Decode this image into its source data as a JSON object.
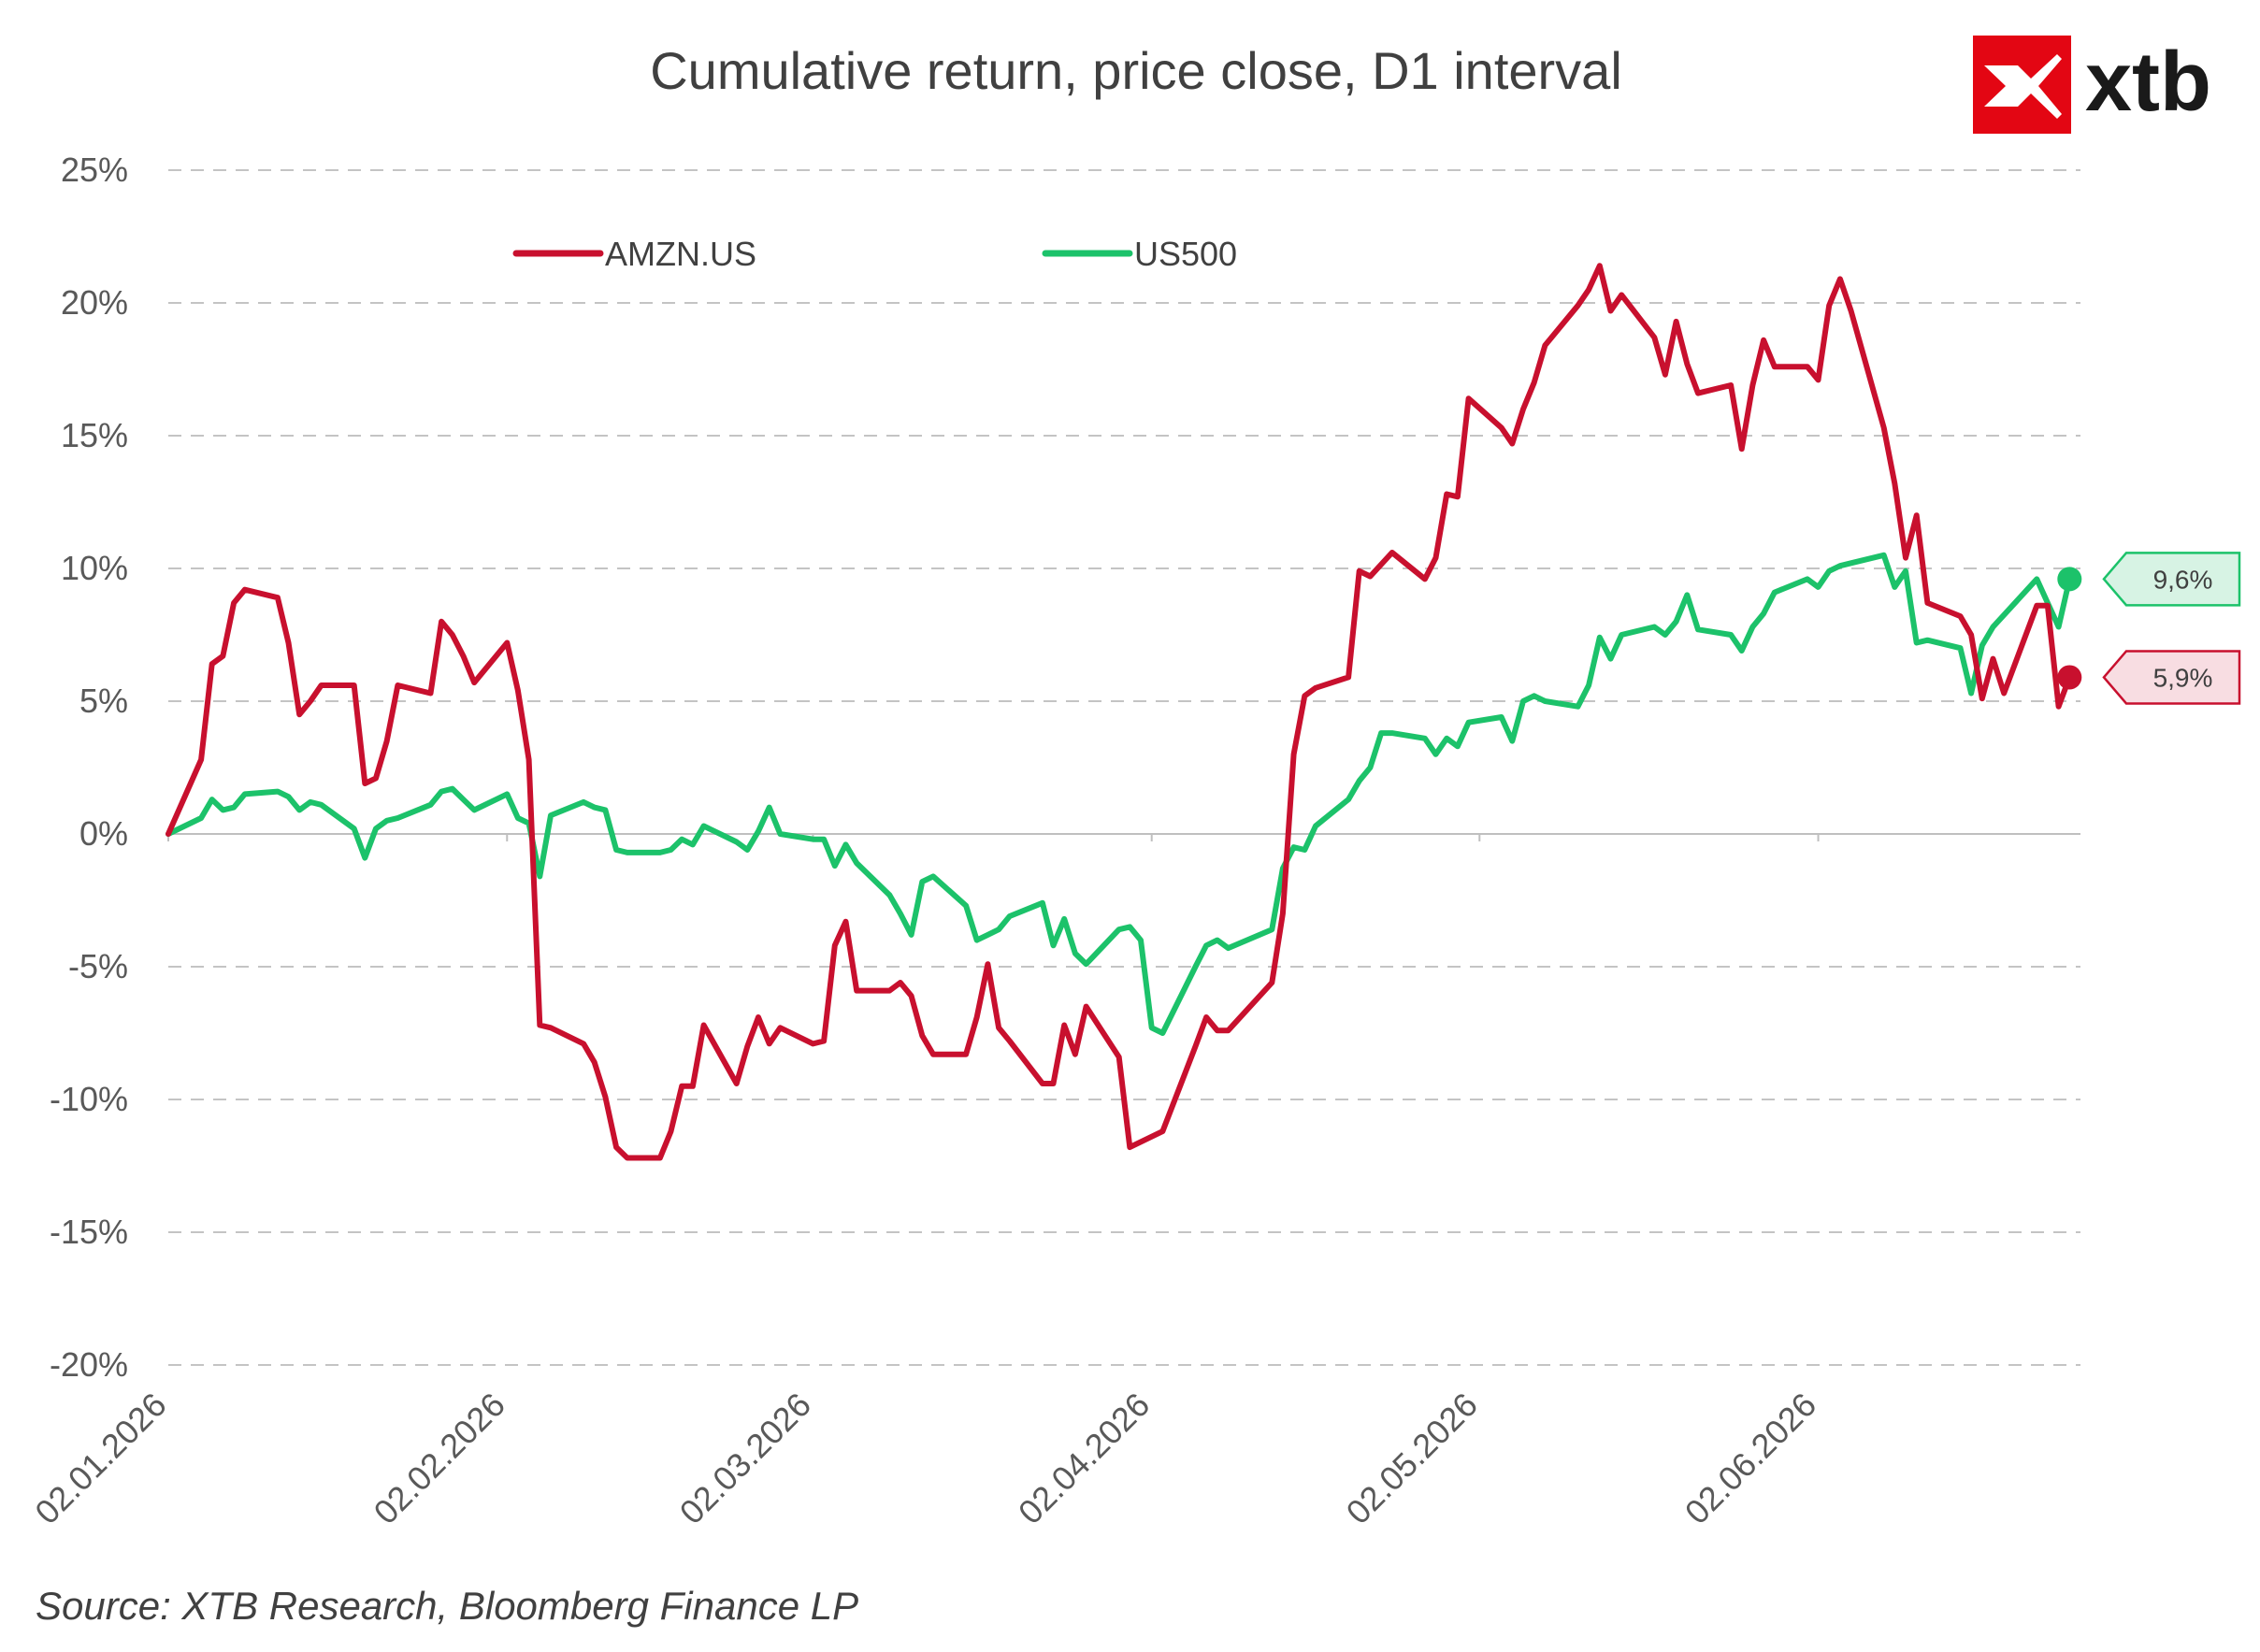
{
  "brand": {
    "logo_text": "xtb",
    "logo_color": "#e30613",
    "logo_icon": "x-mark-icon"
  },
  "source": "Source: XTB Research, Bloomberg Finance LP",
  "chart_data": {
    "type": "line",
    "title": "Cumulative return, price close, D1 interval",
    "xlabel": "",
    "ylabel": "",
    "ylim": [
      -20,
      25
    ],
    "yticks": [
      25,
      20,
      15,
      10,
      5,
      0,
      -5,
      -10,
      -15,
      -20
    ],
    "ytick_labels": [
      "25%",
      "20%",
      "15%",
      "10%",
      "5%",
      "0%",
      "-5%",
      "-10%",
      "-15%",
      "-20%"
    ],
    "xlim": [
      "2026-01-02",
      "2026-06-26"
    ],
    "xticks": [
      "2026-01-02",
      "2026-02-02",
      "2026-03-02",
      "2026-04-02",
      "2026-05-02",
      "2026-06-02"
    ],
    "xtick_labels": [
      "02.01.2026",
      "02.02.2026",
      "02.03.2026",
      "02.04.2026",
      "02.05.2026",
      "02.06.2026"
    ],
    "grid": true,
    "legend": "top-left",
    "series": [
      {
        "name": "AMZN.US",
        "color": "#c8102e",
        "end_label": "5,9%",
        "end_value": 5.9,
        "points": [
          [
            "2026-01-02",
            0
          ],
          [
            "2026-01-05",
            2.8
          ],
          [
            "2026-01-06",
            6.4
          ],
          [
            "2026-01-07",
            6.7
          ],
          [
            "2026-01-08",
            8.7
          ],
          [
            "2026-01-09",
            9.2
          ],
          [
            "2026-01-12",
            8.9
          ],
          [
            "2026-01-13",
            7.2
          ],
          [
            "2026-01-14",
            4.5
          ],
          [
            "2026-01-15",
            5.0
          ],
          [
            "2026-01-16",
            5.6
          ],
          [
            "2026-01-19",
            5.6
          ],
          [
            "2026-01-20",
            1.9
          ],
          [
            "2026-01-21",
            2.1
          ],
          [
            "2026-01-22",
            3.5
          ],
          [
            "2026-01-23",
            5.6
          ],
          [
            "2026-01-26",
            5.3
          ],
          [
            "2026-01-27",
            8.0
          ],
          [
            "2026-01-28",
            7.5
          ],
          [
            "2026-01-29",
            6.7
          ],
          [
            "2026-01-30",
            5.7
          ],
          [
            "2026-02-02",
            7.2
          ],
          [
            "2026-02-03",
            5.4
          ],
          [
            "2026-02-04",
            2.8
          ],
          [
            "2026-02-05",
            -7.2
          ],
          [
            "2026-02-06",
            -7.3
          ],
          [
            "2026-02-09",
            -7.9
          ],
          [
            "2026-02-10",
            -8.6
          ],
          [
            "2026-02-11",
            -9.9
          ],
          [
            "2026-02-12",
            -11.8
          ],
          [
            "2026-02-13",
            -12.2
          ],
          [
            "2026-02-16",
            -12.2
          ],
          [
            "2026-02-17",
            -11.2
          ],
          [
            "2026-02-18",
            -9.5
          ],
          [
            "2026-02-19",
            -9.5
          ],
          [
            "2026-02-20",
            -7.2
          ],
          [
            "2026-02-23",
            -9.4
          ],
          [
            "2026-02-24",
            -8.0
          ],
          [
            "2026-02-25",
            -6.9
          ],
          [
            "2026-02-26",
            -7.9
          ],
          [
            "2026-02-27",
            -7.3
          ],
          [
            "2026-03-02",
            -7.9
          ],
          [
            "2026-03-03",
            -7.8
          ],
          [
            "2026-03-04",
            -4.2
          ],
          [
            "2026-03-05",
            -3.3
          ],
          [
            "2026-03-06",
            -5.9
          ],
          [
            "2026-03-09",
            -5.9
          ],
          [
            "2026-03-10",
            -5.6
          ],
          [
            "2026-03-11",
            -6.1
          ],
          [
            "2026-03-12",
            -7.6
          ],
          [
            "2026-03-13",
            -8.3
          ],
          [
            "2026-03-16",
            -8.3
          ],
          [
            "2026-03-17",
            -6.9
          ],
          [
            "2026-03-18",
            -4.9
          ],
          [
            "2026-03-19",
            -7.3
          ],
          [
            "2026-03-20",
            -7.8
          ],
          [
            "2026-03-23",
            -9.4
          ],
          [
            "2026-03-24",
            -9.4
          ],
          [
            "2026-03-25",
            -7.2
          ],
          [
            "2026-03-26",
            -8.3
          ],
          [
            "2026-03-27",
            -6.5
          ],
          [
            "2026-03-30",
            -8.4
          ],
          [
            "2026-03-31",
            -11.8
          ],
          [
            "2026-04-03",
            -11.2
          ],
          [
            "2026-04-06",
            -8.0
          ],
          [
            "2026-04-07",
            -6.9
          ],
          [
            "2026-04-08",
            -7.4
          ],
          [
            "2026-04-09",
            -7.4
          ],
          [
            "2026-04-13",
            -5.6
          ],
          [
            "2026-04-14",
            -3.0
          ],
          [
            "2026-04-15",
            3.0
          ],
          [
            "2026-04-16",
            5.2
          ],
          [
            "2026-04-17",
            5.5
          ],
          [
            "2026-04-20",
            5.9
          ],
          [
            "2026-04-21",
            9.9
          ],
          [
            "2026-04-22",
            9.7
          ],
          [
            "2026-04-24",
            10.6
          ],
          [
            "2026-04-27",
            9.6
          ],
          [
            "2026-04-28",
            10.4
          ],
          [
            "2026-04-29",
            12.8
          ],
          [
            "2026-04-30",
            12.7
          ],
          [
            "2026-05-01",
            16.4
          ],
          [
            "2026-05-04",
            15.3
          ],
          [
            "2026-05-05",
            14.7
          ],
          [
            "2026-05-06",
            16.0
          ],
          [
            "2026-05-07",
            17.0
          ],
          [
            "2026-05-08",
            18.4
          ],
          [
            "2026-05-11",
            19.9
          ],
          [
            "2026-05-12",
            20.5
          ],
          [
            "2026-05-13",
            21.4
          ],
          [
            "2026-05-14",
            19.7
          ],
          [
            "2026-05-15",
            20.3
          ],
          [
            "2026-05-18",
            18.7
          ],
          [
            "2026-05-19",
            17.3
          ],
          [
            "2026-05-20",
            19.3
          ],
          [
            "2026-05-21",
            17.7
          ],
          [
            "2026-05-22",
            16.6
          ],
          [
            "2026-05-25",
            16.9
          ],
          [
            "2026-05-26",
            14.5
          ],
          [
            "2026-05-27",
            16.9
          ],
          [
            "2026-05-28",
            18.6
          ],
          [
            "2026-05-29",
            17.6
          ],
          [
            "2026-06-01",
            17.6
          ],
          [
            "2026-06-02",
            17.1
          ],
          [
            "2026-06-03",
            19.9
          ],
          [
            "2026-06-04",
            20.9
          ],
          [
            "2026-06-05",
            19.7
          ],
          [
            "2026-06-08",
            15.3
          ],
          [
            "2026-06-09",
            13.2
          ],
          [
            "2026-06-10",
            10.4
          ],
          [
            "2026-06-11",
            12.0
          ],
          [
            "2026-06-12",
            8.7
          ],
          [
            "2026-06-15",
            8.2
          ],
          [
            "2026-06-16",
            7.5
          ],
          [
            "2026-06-17",
            5.1
          ],
          [
            "2026-06-18",
            6.6
          ],
          [
            "2026-06-19",
            5.3
          ],
          [
            "2026-06-22",
            8.6
          ],
          [
            "2026-06-23",
            8.6
          ],
          [
            "2026-06-24",
            4.8
          ],
          [
            "2026-06-25",
            5.9
          ]
        ]
      },
      {
        "name": "US500",
        "color": "#1cc26a",
        "end_label": "9,6%",
        "end_value": 9.6,
        "points": [
          [
            "2026-01-02",
            0
          ],
          [
            "2026-01-05",
            0.6
          ],
          [
            "2026-01-06",
            1.3
          ],
          [
            "2026-01-07",
            0.9
          ],
          [
            "2026-01-08",
            1.0
          ],
          [
            "2026-01-09",
            1.5
          ],
          [
            "2026-01-12",
            1.6
          ],
          [
            "2026-01-13",
            1.4
          ],
          [
            "2026-01-14",
            0.9
          ],
          [
            "2026-01-15",
            1.2
          ],
          [
            "2026-01-16",
            1.1
          ],
          [
            "2026-01-19",
            0.2
          ],
          [
            "2026-01-20",
            -0.9
          ],
          [
            "2026-01-21",
            0.2
          ],
          [
            "2026-01-22",
            0.5
          ],
          [
            "2026-01-23",
            0.6
          ],
          [
            "2026-01-26",
            1.1
          ],
          [
            "2026-01-27",
            1.6
          ],
          [
            "2026-01-28",
            1.7
          ],
          [
            "2026-01-29",
            1.3
          ],
          [
            "2026-01-30",
            0.9
          ],
          [
            "2026-02-02",
            1.5
          ],
          [
            "2026-02-03",
            0.6
          ],
          [
            "2026-02-04",
            0.4
          ],
          [
            "2026-02-05",
            -1.6
          ],
          [
            "2026-02-06",
            0.7
          ],
          [
            "2026-02-09",
            1.2
          ],
          [
            "2026-02-10",
            1.0
          ],
          [
            "2026-02-11",
            0.9
          ],
          [
            "2026-02-12",
            -0.6
          ],
          [
            "2026-02-13",
            -0.7
          ],
          [
            "2026-02-16",
            -0.7
          ],
          [
            "2026-02-17",
            -0.6
          ],
          [
            "2026-02-18",
            -0.2
          ],
          [
            "2026-02-19",
            -0.4
          ],
          [
            "2026-02-20",
            0.3
          ],
          [
            "2026-02-23",
            -0.3
          ],
          [
            "2026-02-24",
            -0.6
          ],
          [
            "2026-02-25",
            0.1
          ],
          [
            "2026-02-26",
            1.0
          ],
          [
            "2026-02-27",
            0.0
          ],
          [
            "2026-03-02",
            -0.2
          ],
          [
            "2026-03-03",
            -0.2
          ],
          [
            "2026-03-04",
            -1.2
          ],
          [
            "2026-03-05",
            -0.4
          ],
          [
            "2026-03-06",
            -1.1
          ],
          [
            "2026-03-09",
            -2.3
          ],
          [
            "2026-03-10",
            -3.0
          ],
          [
            "2026-03-11",
            -3.8
          ],
          [
            "2026-03-12",
            -1.8
          ],
          [
            "2026-03-13",
            -1.6
          ],
          [
            "2026-03-16",
            -2.7
          ],
          [
            "2026-03-17",
            -4.0
          ],
          [
            "2026-03-18",
            -3.8
          ],
          [
            "2026-03-19",
            -3.6
          ],
          [
            "2026-03-20",
            -3.1
          ],
          [
            "2026-03-23",
            -2.6
          ],
          [
            "2026-03-24",
            -4.2
          ],
          [
            "2026-03-25",
            -3.2
          ],
          [
            "2026-03-26",
            -4.5
          ],
          [
            "2026-03-27",
            -4.9
          ],
          [
            "2026-03-30",
            -3.6
          ],
          [
            "2026-03-31",
            -3.5
          ],
          [
            "2026-04-01",
            -4.0
          ],
          [
            "2026-04-02",
            -7.3
          ],
          [
            "2026-04-03",
            -7.5
          ],
          [
            "2026-04-06",
            -5.0
          ],
          [
            "2026-04-07",
            -4.2
          ],
          [
            "2026-04-08",
            -4.0
          ],
          [
            "2026-04-09",
            -4.3
          ],
          [
            "2026-04-13",
            -3.6
          ],
          [
            "2026-04-14",
            -1.3
          ],
          [
            "2026-04-15",
            -0.5
          ],
          [
            "2026-04-16",
            -0.6
          ],
          [
            "2026-04-17",
            0.3
          ],
          [
            "2026-04-20",
            1.3
          ],
          [
            "2026-04-21",
            2.0
          ],
          [
            "2026-04-22",
            2.5
          ],
          [
            "2026-04-23",
            3.8
          ],
          [
            "2026-04-24",
            3.8
          ],
          [
            "2026-04-27",
            3.6
          ],
          [
            "2026-04-28",
            3.0
          ],
          [
            "2026-04-29",
            3.6
          ],
          [
            "2026-04-30",
            3.3
          ],
          [
            "2026-05-01",
            4.2
          ],
          [
            "2026-05-04",
            4.4
          ],
          [
            "2026-05-05",
            3.5
          ],
          [
            "2026-05-06",
            5.0
          ],
          [
            "2026-05-07",
            5.2
          ],
          [
            "2026-05-08",
            5.0
          ],
          [
            "2026-05-11",
            4.8
          ],
          [
            "2026-05-12",
            5.6
          ],
          [
            "2026-05-13",
            7.4
          ],
          [
            "2026-05-14",
            6.6
          ],
          [
            "2026-05-15",
            7.5
          ],
          [
            "2026-05-18",
            7.8
          ],
          [
            "2026-05-19",
            7.5
          ],
          [
            "2026-05-20",
            8.0
          ],
          [
            "2026-05-21",
            9.0
          ],
          [
            "2026-05-22",
            7.7
          ],
          [
            "2026-05-25",
            7.5
          ],
          [
            "2026-05-26",
            6.9
          ],
          [
            "2026-05-27",
            7.8
          ],
          [
            "2026-05-28",
            8.3
          ],
          [
            "2026-05-29",
            9.1
          ],
          [
            "2026-06-01",
            9.6
          ],
          [
            "2026-06-02",
            9.3
          ],
          [
            "2026-06-03",
            9.9
          ],
          [
            "2026-06-04",
            10.1
          ],
          [
            "2026-06-05",
            10.2
          ],
          [
            "2026-06-08",
            10.5
          ],
          [
            "2026-06-09",
            9.3
          ],
          [
            "2026-06-10",
            9.9
          ],
          [
            "2026-06-11",
            7.2
          ],
          [
            "2026-06-12",
            7.3
          ],
          [
            "2026-06-15",
            7.0
          ],
          [
            "2026-06-16",
            5.3
          ],
          [
            "2026-06-17",
            7.1
          ],
          [
            "2026-06-18",
            7.8
          ],
          [
            "2026-06-22",
            9.6
          ],
          [
            "2026-06-23",
            8.7
          ],
          [
            "2026-06-24",
            7.8
          ],
          [
            "2026-06-25",
            9.6
          ]
        ]
      }
    ]
  }
}
